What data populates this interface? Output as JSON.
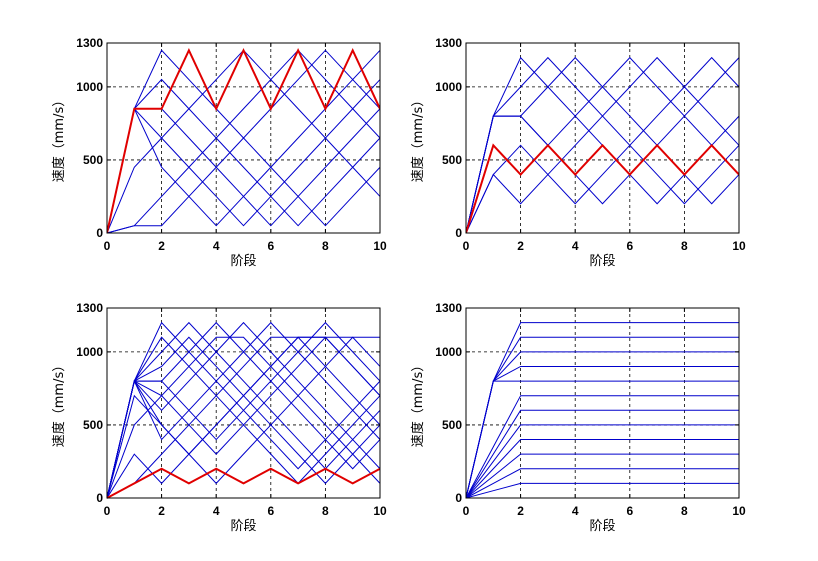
{
  "colors": {
    "blue": "#0000cc",
    "red": "#e00000"
  },
  "chart_data": [
    {
      "type": "line",
      "xlabel": "阶段",
      "ylabel": "速度（mm/s）",
      "xlim": [
        0,
        10
      ],
      "ylim": [
        0,
        1300
      ],
      "xticks": [
        0,
        2,
        4,
        6,
        8,
        10
      ],
      "yticks": [
        0,
        500,
        1000,
        1300
      ],
      "grid": true,
      "x": [
        0,
        1,
        2,
        3,
        4,
        5,
        6,
        7,
        8,
        9,
        10
      ],
      "series": [
        {
          "color": "blue",
          "width": 1,
          "values": [
            0,
            50,
            250,
            450,
            650,
            850,
            1050,
            1250,
            1050,
            850,
            650
          ]
        },
        {
          "color": "blue",
          "width": 1,
          "values": [
            0,
            50,
            50,
            250,
            450,
            650,
            850,
            1050,
            1250,
            1050,
            850
          ]
        },
        {
          "color": "blue",
          "width": 1,
          "values": [
            0,
            450,
            650,
            850,
            1050,
            1250,
            1050,
            850,
            650,
            450,
            250
          ]
        },
        {
          "color": "blue",
          "width": 1,
          "values": [
            0,
            850,
            450,
            250,
            50,
            250,
            450,
            650,
            850,
            1050,
            1250
          ]
        },
        {
          "color": "blue",
          "width": 1,
          "values": [
            0,
            850,
            1050,
            850,
            650,
            450,
            250,
            50,
            250,
            450,
            650
          ]
        },
        {
          "color": "blue",
          "width": 1,
          "values": [
            0,
            850,
            1250,
            1050,
            850,
            650,
            450,
            250,
            50,
            250,
            450
          ]
        },
        {
          "color": "blue",
          "width": 1,
          "values": [
            0,
            850,
            650,
            450,
            250,
            50,
            250,
            450,
            650,
            850,
            1050
          ]
        },
        {
          "color": "blue",
          "width": 1,
          "values": [
            0,
            850,
            850,
            650,
            450,
            250,
            50,
            250,
            450,
            650,
            850
          ]
        },
        {
          "color": "red",
          "width": 2,
          "values": [
            0,
            850,
            850,
            1250,
            850,
            1250,
            850,
            1250,
            850,
            1250,
            850
          ]
        }
      ]
    },
    {
      "type": "line",
      "xlabel": "阶段",
      "ylabel": "速度（mm/s）",
      "xlim": [
        0,
        10
      ],
      "ylim": [
        0,
        1300
      ],
      "xticks": [
        0,
        2,
        4,
        6,
        8,
        10
      ],
      "yticks": [
        0,
        500,
        1000,
        1300
      ],
      "grid": true,
      "x": [
        0,
        1,
        2,
        3,
        4,
        5,
        6,
        7,
        8,
        9,
        10
      ],
      "series": [
        {
          "color": "blue",
          "width": 1,
          "values": [
            0,
            400,
            200,
            400,
            600,
            800,
            1000,
            1200,
            1000,
            800,
            600
          ]
        },
        {
          "color": "blue",
          "width": 1,
          "values": [
            0,
            400,
            600,
            400,
            200,
            400,
            600,
            800,
            1000,
            1200,
            1000
          ]
        },
        {
          "color": "blue",
          "width": 1,
          "values": [
            0,
            800,
            1000,
            1200,
            1000,
            800,
            600,
            400,
            200,
            400,
            600
          ]
        },
        {
          "color": "blue",
          "width": 1,
          "values": [
            0,
            800,
            1200,
            1000,
            800,
            600,
            400,
            200,
            400,
            600,
            800
          ]
        },
        {
          "color": "blue",
          "width": 1,
          "values": [
            0,
            800,
            800,
            1000,
            1200,
            1000,
            800,
            600,
            400,
            200,
            400
          ]
        },
        {
          "color": "blue",
          "width": 1,
          "values": [
            0,
            800,
            800,
            600,
            800,
            1000,
            1200,
            1000,
            800,
            600,
            400
          ]
        },
        {
          "color": "blue",
          "width": 1,
          "values": [
            0,
            800,
            800,
            600,
            400,
            200,
            400,
            600,
            800,
            1000,
            1200
          ]
        },
        {
          "color": "red",
          "width": 2,
          "values": [
            0,
            600,
            400,
            600,
            400,
            600,
            400,
            600,
            400,
            600,
            400
          ]
        }
      ]
    },
    {
      "type": "line",
      "xlabel": "阶段",
      "ylabel": "速度（mm/s）",
      "xlim": [
        0,
        10
      ],
      "ylim": [
        0,
        1300
      ],
      "xticks": [
        0,
        2,
        4,
        6,
        8,
        10
      ],
      "yticks": [
        0,
        500,
        1000,
        1300
      ],
      "grid": true,
      "x": [
        0,
        1,
        2,
        3,
        4,
        5,
        6,
        7,
        8,
        9,
        10
      ],
      "series": [
        {
          "color": "blue",
          "width": 1,
          "values": [
            0,
            100,
            300,
            500,
            700,
            900,
            1100,
            1100,
            900,
            700,
            500
          ]
        },
        {
          "color": "blue",
          "width": 1,
          "values": [
            0,
            300,
            100,
            300,
            500,
            700,
            900,
            1100,
            1100,
            900,
            700
          ]
        },
        {
          "color": "blue",
          "width": 1,
          "values": [
            0,
            500,
            700,
            900,
            1100,
            1100,
            900,
            700,
            500,
            300,
            100
          ]
        },
        {
          "color": "blue",
          "width": 1,
          "values": [
            0,
            700,
            500,
            300,
            100,
            300,
            500,
            700,
            900,
            1100,
            1100
          ]
        },
        {
          "color": "blue",
          "width": 1,
          "values": [
            0,
            800,
            1100,
            900,
            700,
            500,
            300,
            100,
            300,
            500,
            700
          ]
        },
        {
          "color": "blue",
          "width": 1,
          "values": [
            0,
            800,
            900,
            1100,
            900,
            700,
            500,
            300,
            100,
            300,
            500
          ]
        },
        {
          "color": "blue",
          "width": 1,
          "values": [
            0,
            800,
            1200,
            1000,
            800,
            600,
            400,
            200,
            400,
            600,
            800
          ]
        },
        {
          "color": "blue",
          "width": 1,
          "values": [
            0,
            800,
            1000,
            1200,
            1000,
            800,
            600,
            400,
            200,
            400,
            600
          ]
        },
        {
          "color": "blue",
          "width": 1,
          "values": [
            0,
            800,
            800,
            1000,
            1200,
            1000,
            800,
            600,
            400,
            200,
            400
          ]
        },
        {
          "color": "blue",
          "width": 1,
          "values": [
            0,
            800,
            600,
            800,
            1000,
            1200,
            1000,
            800,
            600,
            400,
            200
          ]
        },
        {
          "color": "blue",
          "width": 1,
          "values": [
            0,
            800,
            400,
            600,
            800,
            1000,
            1200,
            1000,
            800,
            600,
            400
          ]
        },
        {
          "color": "blue",
          "width": 1,
          "values": [
            0,
            800,
            800,
            600,
            400,
            600,
            800,
            1000,
            1200,
            1000,
            800
          ]
        },
        {
          "color": "blue",
          "width": 1,
          "values": [
            0,
            800,
            700,
            500,
            300,
            500,
            700,
            900,
            1100,
            1100,
            900
          ]
        },
        {
          "color": "blue",
          "width": 1,
          "values": [
            0,
            800,
            500,
            300,
            500,
            700,
            900,
            1100,
            1100,
            900,
            700
          ]
        },
        {
          "color": "red",
          "width": 2,
          "values": [
            0,
            100,
            200,
            100,
            200,
            100,
            200,
            100,
            200,
            100,
            200
          ]
        }
      ]
    },
    {
      "type": "line",
      "xlabel": "阶段",
      "ylabel": "速度（mm/s）",
      "xlim": [
        0,
        10
      ],
      "ylim": [
        0,
        1300
      ],
      "xticks": [
        0,
        2,
        4,
        6,
        8,
        10
      ],
      "yticks": [
        0,
        500,
        1000,
        1300
      ],
      "grid": true,
      "x": [
        0,
        1,
        2,
        3,
        4,
        5,
        6,
        7,
        8,
        9,
        10
      ],
      "series": [
        {
          "color": "blue",
          "width": 1,
          "values": [
            0,
            50,
            100,
            100,
            100,
            100,
            100,
            100,
            100,
            100,
            100
          ]
        },
        {
          "color": "blue",
          "width": 1,
          "values": [
            0,
            100,
            200,
            200,
            200,
            200,
            200,
            200,
            200,
            200,
            200
          ]
        },
        {
          "color": "blue",
          "width": 1,
          "values": [
            0,
            150,
            300,
            300,
            300,
            300,
            300,
            300,
            300,
            300,
            300
          ]
        },
        {
          "color": "blue",
          "width": 1,
          "values": [
            0,
            200,
            400,
            400,
            400,
            400,
            400,
            400,
            400,
            400,
            400
          ]
        },
        {
          "color": "blue",
          "width": 1,
          "values": [
            0,
            250,
            500,
            500,
            500,
            500,
            500,
            500,
            500,
            500,
            500
          ]
        },
        {
          "color": "blue",
          "width": 1,
          "values": [
            0,
            300,
            600,
            600,
            600,
            600,
            600,
            600,
            600,
            600,
            600
          ]
        },
        {
          "color": "blue",
          "width": 1,
          "values": [
            0,
            350,
            700,
            700,
            700,
            700,
            700,
            700,
            700,
            700,
            700
          ]
        },
        {
          "color": "blue",
          "width": 1,
          "values": [
            0,
            800,
            800,
            800,
            800,
            800,
            800,
            800,
            800,
            800,
            800
          ]
        },
        {
          "color": "blue",
          "width": 1,
          "values": [
            0,
            800,
            900,
            900,
            900,
            900,
            900,
            900,
            900,
            900,
            900
          ]
        },
        {
          "color": "blue",
          "width": 1,
          "values": [
            0,
            800,
            1000,
            1000,
            1000,
            1000,
            1000,
            1000,
            1000,
            1000,
            1000
          ]
        },
        {
          "color": "blue",
          "width": 1,
          "values": [
            0,
            800,
            1100,
            1100,
            1100,
            1100,
            1100,
            1100,
            1100,
            1100,
            1100
          ]
        },
        {
          "color": "blue",
          "width": 1,
          "values": [
            0,
            800,
            1200,
            1200,
            1200,
            1200,
            1200,
            1200,
            1200,
            1200,
            1200
          ]
        }
      ]
    }
  ]
}
